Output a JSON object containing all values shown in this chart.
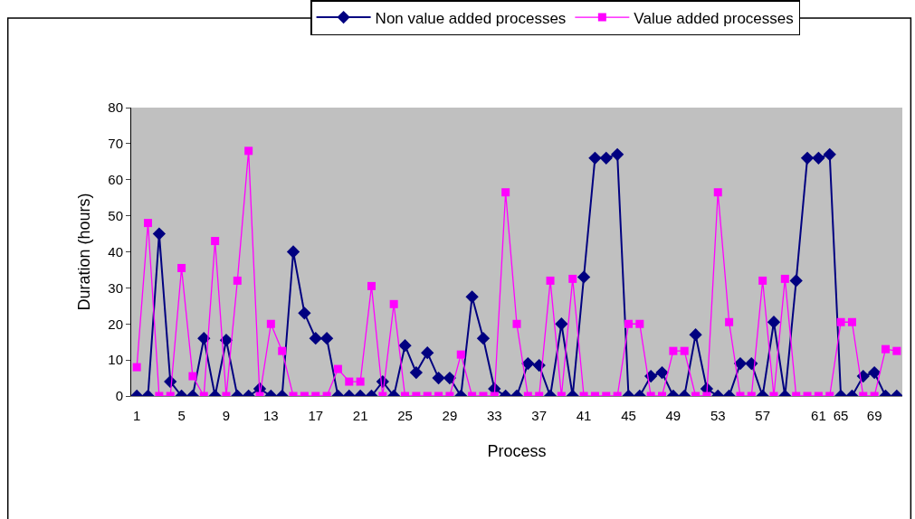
{
  "chart_data": {
    "type": "line",
    "xlabel": "Process",
    "ylabel": "Duration (hours)",
    "categories": [
      "1",
      null,
      null,
      null,
      "5",
      null,
      null,
      null,
      "9",
      null,
      null,
      null,
      "13",
      null,
      null,
      null,
      "17",
      null,
      null,
      null,
      "21",
      null,
      null,
      null,
      "25",
      null,
      null,
      null,
      "29",
      null,
      null,
      null,
      "33",
      null,
      null,
      null,
      "37",
      null,
      null,
      null,
      "41",
      null,
      null,
      null,
      "45",
      null,
      null,
      null,
      "49",
      null,
      null,
      null,
      "53",
      null,
      null,
      null,
      "57",
      null,
      null,
      null,
      null,
      "61",
      null,
      "65",
      null,
      null,
      "69",
      null,
      null
    ],
    "series": [
      {
        "name": "Non value added processes",
        "color": "#000080",
        "marker": "diamond",
        "values": [
          0,
          0,
          45,
          4,
          0,
          0,
          16,
          0,
          15.5,
          0,
          0,
          2,
          0,
          0,
          40,
          23,
          16,
          16,
          0,
          0,
          0,
          0,
          4,
          0,
          14,
          6.5,
          12,
          5,
          5,
          0,
          27.5,
          16,
          2,
          0,
          0,
          9,
          8.5,
          0,
          20,
          0,
          33,
          66,
          66,
          67,
          0,
          0,
          5.5,
          6.5,
          0,
          0,
          17,
          2,
          0,
          0,
          9,
          9,
          0,
          20.5,
          0,
          32,
          66,
          66,
          67,
          0,
          0,
          5.5,
          6.5,
          0,
          0
        ]
      },
      {
        "name": "Value added processes",
        "color": "#ff00ff",
        "marker": "square",
        "values": [
          8,
          48,
          0,
          0,
          35.5,
          5.5,
          0,
          43,
          0,
          32,
          68,
          0,
          20,
          12.5,
          0,
          0,
          0,
          0,
          7.5,
          4,
          4,
          30.5,
          0,
          25.5,
          0,
          0,
          0,
          0,
          0,
          11.5,
          0,
          0,
          0,
          56.5,
          20,
          0,
          0,
          32,
          0,
          32.5,
          0,
          0,
          0,
          0,
          20,
          20,
          0,
          0,
          12.5,
          12.5,
          0,
          0,
          56.5,
          20.5,
          0,
          0,
          32,
          0,
          32.5,
          0,
          0,
          0,
          0,
          20.5,
          20.5,
          0,
          0,
          13,
          12.5
        ]
      }
    ],
    "ylim": [
      0,
      80
    ],
    "yticks": [
      0,
      10,
      20,
      30,
      40,
      50,
      60,
      70,
      80
    ],
    "grid": false,
    "legend": "top"
  }
}
